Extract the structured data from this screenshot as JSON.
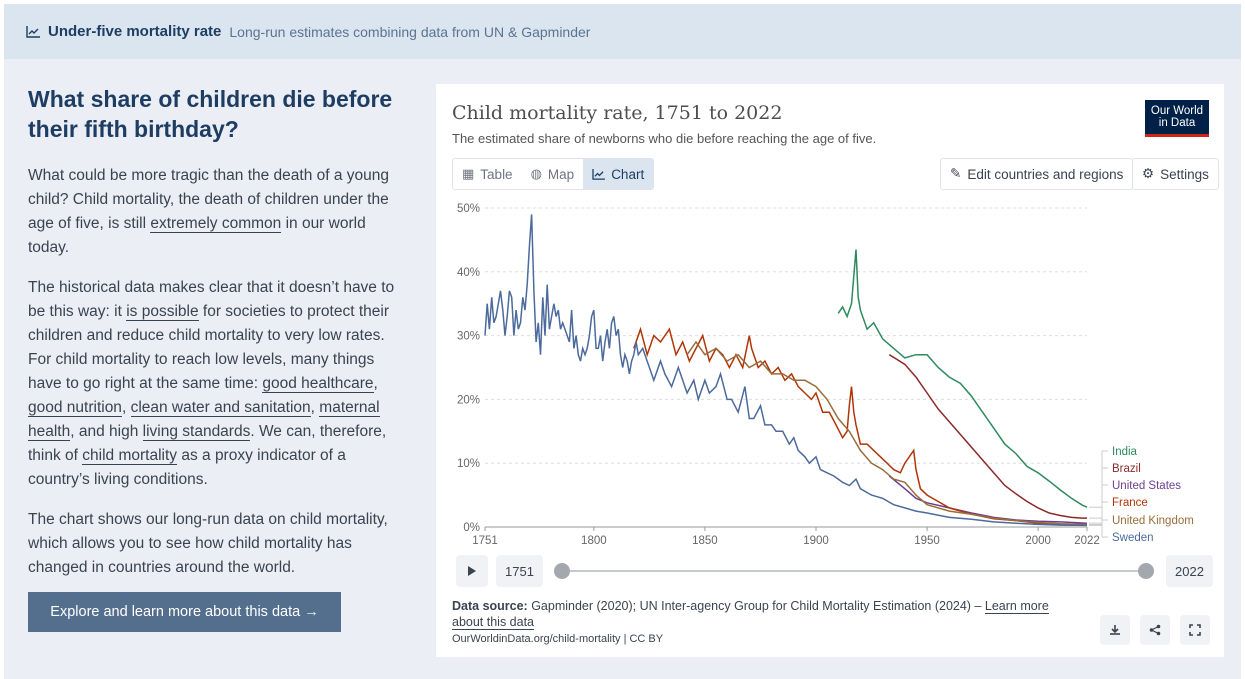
{
  "header": {
    "title": "Under-five mortality rate",
    "subtitle": "Long-run estimates combining data from UN & Gapminder"
  },
  "article": {
    "heading": "What share of children die before their fifth birthday?",
    "p1_a": "What could be more tragic than the death of a young child? Child mortality, the death of children under the age of five, is still ",
    "p1_link": "extremely common",
    "p1_b": " in our world today.",
    "p2_a": "The historical data makes clear that it doesn’t have to be this way: it ",
    "p2_link1": "is possible",
    "p2_b": " for societies to protect their children and reduce child mortality to very low rates. For child mortality to reach low levels, many things have to go right at the same time: ",
    "p2_link2": "good healthcare",
    "p2_c": ", ",
    "p2_link3": "good nutrition",
    "p2_d": ", ",
    "p2_link4": "clean water and sanitation",
    "p2_e": ", ",
    "p2_link5": "maternal health",
    "p2_f": ", and high ",
    "p2_link6": "living standards",
    "p2_g": ". We can, therefore, think of ",
    "p2_link7": "child mortality",
    "p2_h": " as a proxy indicator of a country’s living conditions.",
    "p3": "The chart shows our long-run data on child mortality, which allows you to see how child mortality has changed in countries around the world.",
    "explore_button": "Explore and learn more about this data →"
  },
  "card": {
    "title": "Child mortality rate, 1751 to 2022",
    "subtitle": "The estimated share of newborns who die before reaching the age of five.",
    "logo_line1": "Our World",
    "logo_line2": "in Data",
    "tabs": [
      {
        "label": "Table",
        "icon": "table-icon"
      },
      {
        "label": "Map",
        "icon": "globe-icon"
      },
      {
        "label": "Chart",
        "icon": "line-chart-icon"
      }
    ],
    "edit_button": "Edit countries and regions",
    "settings_button": "Settings",
    "timeline": {
      "start": "1751",
      "end": "2022",
      "start_value": 1751,
      "end_value": 2022
    },
    "source_label": "Data source:",
    "source_text": " Gapminder (2020); UN Inter-agency Group for Child Mortality Estimation (2024) – ",
    "source_link": "Learn more about this data",
    "url": "OurWorldinData.org/child-mortality | CC BY"
  },
  "chart_data": {
    "type": "line",
    "title": "Child mortality rate, 1751 to 2022",
    "subtitle": "The estimated share of newborns who die before reaching the age of five.",
    "xlim": [
      1751,
      2022
    ],
    "ylim": [
      0,
      50
    ],
    "yticks": [
      "0%",
      "10%",
      "20%",
      "30%",
      "40%",
      "50%"
    ],
    "xticks": [
      "1751",
      "1800",
      "1850",
      "1900",
      "1950",
      "2000",
      "2022"
    ],
    "grid": "horizontal dashed",
    "legend": "right, end-of-line labels",
    "series": [
      {
        "name": "India",
        "color": "#2f8a5d",
        "points": [
          [
            1910,
            33.5
          ],
          [
            1912,
            34.5
          ],
          [
            1914,
            33
          ],
          [
            1916,
            35
          ],
          [
            1918,
            43.5
          ],
          [
            1919,
            36
          ],
          [
            1920,
            34
          ],
          [
            1923,
            31
          ],
          [
            1926,
            32
          ],
          [
            1930,
            29.5
          ],
          [
            1935,
            28
          ],
          [
            1940,
            26.5
          ],
          [
            1945,
            27
          ],
          [
            1950,
            27
          ],
          [
            1955,
            25
          ],
          [
            1960,
            23.5
          ],
          [
            1965,
            22.5
          ],
          [
            1970,
            20.5
          ],
          [
            1975,
            18
          ],
          [
            1980,
            15.5
          ],
          [
            1985,
            13
          ],
          [
            1990,
            11.5
          ],
          [
            1995,
            9.5
          ],
          [
            2000,
            8.5
          ],
          [
            2005,
            7.2
          ],
          [
            2010,
            5.8
          ],
          [
            2015,
            4.5
          ],
          [
            2020,
            3.4
          ],
          [
            2022,
            3.1
          ]
        ]
      },
      {
        "name": "Brazil",
        "color": "#8c2a2a",
        "points": [
          [
            1933,
            27
          ],
          [
            1940,
            25.5
          ],
          [
            1945,
            23.5
          ],
          [
            1950,
            21
          ],
          [
            1955,
            18.5
          ],
          [
            1960,
            16.5
          ],
          [
            1965,
            14.5
          ],
          [
            1970,
            12.5
          ],
          [
            1975,
            10.5
          ],
          [
            1980,
            8.5
          ],
          [
            1985,
            6.5
          ],
          [
            1990,
            5.2
          ],
          [
            1995,
            4
          ],
          [
            2000,
            3
          ],
          [
            2005,
            2.2
          ],
          [
            2010,
            1.8
          ],
          [
            2015,
            1.5
          ],
          [
            2020,
            1.4
          ],
          [
            2022,
            1.4
          ]
        ]
      },
      {
        "name": "United States",
        "color": "#6d3e91",
        "points": [
          [
            1933,
            8
          ],
          [
            1940,
            6
          ],
          [
            1945,
            4.5
          ],
          [
            1950,
            3.8
          ],
          [
            1960,
            3
          ],
          [
            1970,
            2.2
          ],
          [
            1980,
            1.5
          ],
          [
            1990,
            1.1
          ],
          [
            2000,
            0.9
          ],
          [
            2010,
            0.8
          ],
          [
            2022,
            0.6
          ]
        ]
      },
      {
        "name": "France",
        "color": "#b13507",
        "points": [
          [
            1751,
            null
          ],
          [
            1818,
            28
          ],
          [
            1821,
            31
          ],
          [
            1824,
            27
          ],
          [
            1827,
            30
          ],
          [
            1830,
            29
          ],
          [
            1834,
            31
          ],
          [
            1837,
            27
          ],
          [
            1840,
            29
          ],
          [
            1843,
            26
          ],
          [
            1846,
            28
          ],
          [
            1849,
            30
          ],
          [
            1852,
            26
          ],
          [
            1855,
            28
          ],
          [
            1858,
            27
          ],
          [
            1861,
            25
          ],
          [
            1864,
            27
          ],
          [
            1867,
            25
          ],
          [
            1870,
            30
          ],
          [
            1871,
            28
          ],
          [
            1874,
            25
          ],
          [
            1877,
            26
          ],
          [
            1880,
            24
          ],
          [
            1883,
            25
          ],
          [
            1886,
            23
          ],
          [
            1889,
            24
          ],
          [
            1892,
            22
          ],
          [
            1895,
            21
          ],
          [
            1898,
            20
          ],
          [
            1900,
            21
          ],
          [
            1903,
            18
          ],
          [
            1906,
            18
          ],
          [
            1909,
            16
          ],
          [
            1912,
            14
          ],
          [
            1914,
            15
          ],
          [
            1915,
            19
          ],
          [
            1916,
            22
          ],
          [
            1917,
            18
          ],
          [
            1918,
            16
          ],
          [
            1920,
            13
          ],
          [
            1923,
            13
          ],
          [
            1926,
            12
          ],
          [
            1929,
            11
          ],
          [
            1932,
            10
          ],
          [
            1935,
            9
          ],
          [
            1938,
            8.5
          ],
          [
            1940,
            10
          ],
          [
            1942,
            11
          ],
          [
            1944,
            12
          ],
          [
            1945,
            9
          ],
          [
            1947,
            6
          ],
          [
            1950,
            5
          ],
          [
            1955,
            4
          ],
          [
            1960,
            3
          ],
          [
            1970,
            2
          ],
          [
            1980,
            1.3
          ],
          [
            1990,
            1
          ],
          [
            2000,
            0.6
          ],
          [
            2010,
            0.45
          ],
          [
            2022,
            0.4
          ]
        ]
      },
      {
        "name": "United Kingdom",
        "color": "#996d39",
        "points": [
          [
            1800,
            null
          ],
          [
            1842,
            27
          ],
          [
            1846,
            29
          ],
          [
            1850,
            27
          ],
          [
            1855,
            28
          ],
          [
            1860,
            26
          ],
          [
            1865,
            27
          ],
          [
            1870,
            25
          ],
          [
            1875,
            26
          ],
          [
            1880,
            24
          ],
          [
            1885,
            24
          ],
          [
            1890,
            23
          ],
          [
            1895,
            23
          ],
          [
            1900,
            22
          ],
          [
            1905,
            20
          ],
          [
            1910,
            17
          ],
          [
            1915,
            15
          ],
          [
            1920,
            12
          ],
          [
            1925,
            10
          ],
          [
            1930,
            9
          ],
          [
            1935,
            7.5
          ],
          [
            1940,
            7
          ],
          [
            1945,
            5
          ],
          [
            1950,
            3.5
          ],
          [
            1960,
            2.5
          ],
          [
            1970,
            2
          ],
          [
            1980,
            1.4
          ],
          [
            1990,
            1
          ],
          [
            2000,
            0.7
          ],
          [
            2010,
            0.5
          ],
          [
            2022,
            0.4
          ]
        ]
      },
      {
        "name": "Sweden",
        "color": "#4c6a9c",
        "points": [
          [
            1751,
            30
          ],
          [
            1752,
            35
          ],
          [
            1753,
            31
          ],
          [
            1754,
            36
          ],
          [
            1755,
            32
          ],
          [
            1756,
            33
          ],
          [
            1757,
            35
          ],
          [
            1758,
            37
          ],
          [
            1759,
            34
          ],
          [
            1760,
            30
          ],
          [
            1761,
            33
          ],
          [
            1762,
            37
          ],
          [
            1763,
            36
          ],
          [
            1764,
            30
          ],
          [
            1765,
            34
          ],
          [
            1766,
            31
          ],
          [
            1767,
            32
          ],
          [
            1768,
            36
          ],
          [
            1769,
            34
          ],
          [
            1770,
            38
          ],
          [
            1771,
            44
          ],
          [
            1772,
            49
          ],
          [
            1773,
            37
          ],
          [
            1774,
            29
          ],
          [
            1775,
            32
          ],
          [
            1776,
            27
          ],
          [
            1777,
            36
          ],
          [
            1778,
            30
          ],
          [
            1779,
            38
          ],
          [
            1780,
            31
          ],
          [
            1781,
            33
          ],
          [
            1782,
            35
          ],
          [
            1783,
            33
          ],
          [
            1784,
            34
          ],
          [
            1785,
            31
          ],
          [
            1786,
            32
          ],
          [
            1787,
            31
          ],
          [
            1788,
            30
          ],
          [
            1789,
            29
          ],
          [
            1790,
            34
          ],
          [
            1791,
            28
          ],
          [
            1792,
            30
          ],
          [
            1793,
            27
          ],
          [
            1794,
            26
          ],
          [
            1795,
            28
          ],
          [
            1796,
            27
          ],
          [
            1797,
            28
          ],
          [
            1798,
            30
          ],
          [
            1799,
            33
          ],
          [
            1800,
            34
          ],
          [
            1801,
            28
          ],
          [
            1802,
            28
          ],
          [
            1803,
            30
          ],
          [
            1804,
            26
          ],
          [
            1805,
            29
          ],
          [
            1806,
            31
          ],
          [
            1807,
            28
          ],
          [
            1808,
            32
          ],
          [
            1809,
            33
          ],
          [
            1810,
            30
          ],
          [
            1811,
            31
          ],
          [
            1812,
            27
          ],
          [
            1813,
            25
          ],
          [
            1814,
            27
          ],
          [
            1815,
            26
          ],
          [
            1816,
            24
          ],
          [
            1817,
            26
          ],
          [
            1818,
            27
          ],
          [
            1819,
            29
          ],
          [
            1820,
            27
          ],
          [
            1822,
            28
          ],
          [
            1825,
            25
          ],
          [
            1827,
            23
          ],
          [
            1830,
            26
          ],
          [
            1832,
            24
          ],
          [
            1835,
            22
          ],
          [
            1838,
            25
          ],
          [
            1840,
            23
          ],
          [
            1842,
            21
          ],
          [
            1845,
            23
          ],
          [
            1847,
            20
          ],
          [
            1850,
            23
          ],
          [
            1852,
            21
          ],
          [
            1855,
            22
          ],
          [
            1857,
            24
          ],
          [
            1860,
            20
          ],
          [
            1862,
            20
          ],
          [
            1865,
            18
          ],
          [
            1868,
            22
          ],
          [
            1870,
            17
          ],
          [
            1872,
            17
          ],
          [
            1875,
            19
          ],
          [
            1877,
            16
          ],
          [
            1880,
            16
          ],
          [
            1882,
            15
          ],
          [
            1885,
            15
          ],
          [
            1888,
            13
          ],
          [
            1890,
            14
          ],
          [
            1892,
            12
          ],
          [
            1895,
            11
          ],
          [
            1897,
            10
          ],
          [
            1900,
            11
          ],
          [
            1902,
            9
          ],
          [
            1905,
            8.5
          ],
          [
            1908,
            8
          ],
          [
            1910,
            7.5
          ],
          [
            1912,
            7
          ],
          [
            1915,
            6.5
          ],
          [
            1918,
            7.5
          ],
          [
            1920,
            6
          ],
          [
            1925,
            5
          ],
          [
            1930,
            4.5
          ],
          [
            1935,
            3.5
          ],
          [
            1940,
            3
          ],
          [
            1945,
            2.5
          ],
          [
            1950,
            2.2
          ],
          [
            1960,
            1.5
          ],
          [
            1970,
            1.2
          ],
          [
            1980,
            0.8
          ],
          [
            1990,
            0.6
          ],
          [
            2000,
            0.4
          ],
          [
            2010,
            0.3
          ],
          [
            2022,
            0.25
          ]
        ]
      }
    ]
  }
}
